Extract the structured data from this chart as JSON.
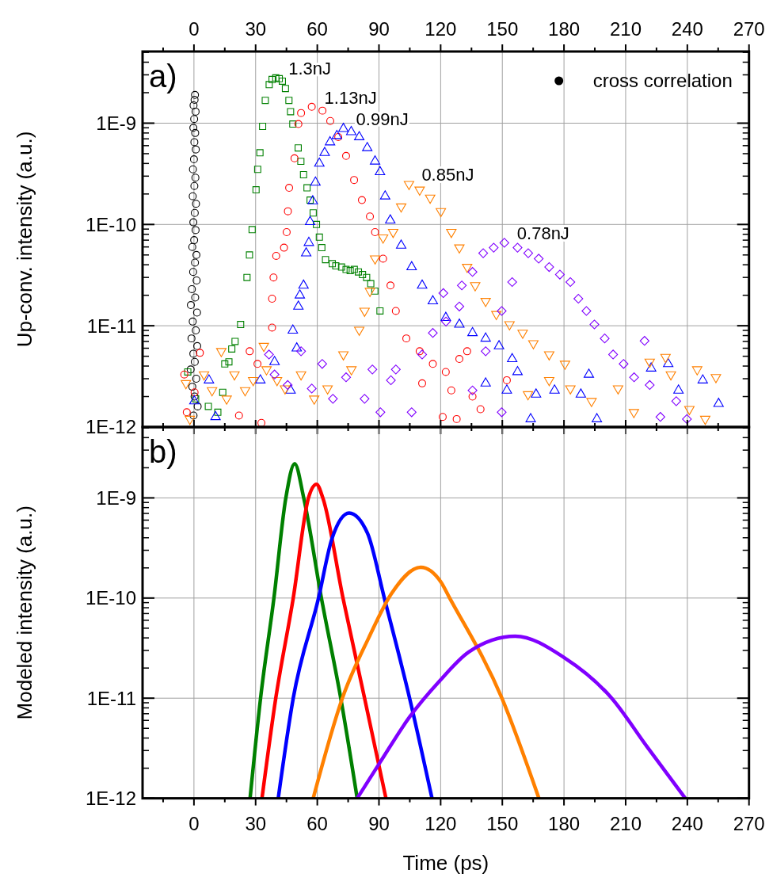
{
  "chart_data": [
    {
      "type": "scatter",
      "ylabel": "Up-conv. intensity (a.u.)",
      "log": "y",
      "grid": true,
      "legend": "top right",
      "xlim": [
        -25,
        270
      ],
      "x2lim": [
        -25,
        270
      ],
      "x2ticks": [
        0,
        30,
        60,
        90,
        120,
        150,
        180,
        210,
        240,
        270
      ],
      "ylim": [
        1e-12,
        5.1e-09
      ],
      "yticks": [
        {
          "value": 1e-12,
          "label": "1E-12"
        },
        {
          "value": 1e-11,
          "label": "1E-11"
        },
        {
          "value": 1e-10,
          "label": "1E-10"
        },
        {
          "value": 1e-09,
          "label": "1E-9"
        }
      ],
      "annotations": [
        "a)"
      ],
      "series": [
        {
          "name": "cross correlation",
          "color": "#000000",
          "marker": "circle",
          "x": [
            0.5,
            0.3,
            -0.2,
            0.8,
            0.1,
            -0.3,
            0.6,
            0.2,
            0.9,
            0.0,
            -0.5,
            0.7,
            0.2,
            -0.6,
            1.0,
            0.4,
            -0.3,
            0.8,
            0.1,
            -0.8,
            1.2,
            0.5,
            -0.4,
            1.3,
            -1.0,
            0.6,
            -1.5,
            1.5,
            -0.6,
            0.9,
            -1.2,
            1.6,
            -0.3,
            0.4,
            -1.6,
            1.1,
            -0.8,
            0.3,
            1.8,
            -0.2
          ],
          "values": [
            1.9e-09,
            1.7e-09,
            1.5e-09,
            1.3e-09,
            1.1e-09,
            9e-10,
            8e-10,
            6.5e-10,
            5.5e-10,
            4.4e-10,
            3.5e-10,
            2.9e-10,
            2.4e-10,
            1.9e-10,
            1.6e-10,
            1.3e-10,
            1.05e-10,
            8.8e-11,
            7e-11,
            6e-11,
            5e-11,
            4.2e-11,
            3.4e-11,
            2.8e-11,
            2.3e-11,
            1.9e-11,
            1.6e-11,
            1.35e-11,
            1.1e-11,
            9e-12,
            7.5e-12,
            6.3e-12,
            5.3e-12,
            4.4e-12,
            3.7e-12,
            3e-12,
            2.5e-12,
            2e-12,
            1.6e-12,
            1.3e-12
          ]
        },
        {
          "name": "1.3nJ",
          "color": "#008000",
          "marker": "square",
          "x": [
            -3,
            0.8,
            7,
            11.6,
            14,
            15,
            17,
            18.4,
            20,
            22.7,
            25.8,
            27,
            28.3,
            30.2,
            31,
            32.1,
            33.4,
            34.7,
            36.6,
            38,
            39.8,
            41.5,
            43,
            44.5,
            46.2,
            47,
            48.1,
            50.7,
            52,
            53.3,
            55,
            56.5,
            58,
            59.6,
            61,
            62.2,
            64,
            67.3,
            69,
            71.8,
            74,
            76,
            78,
            80,
            82,
            84,
            86,
            88,
            90.5
          ],
          "values": [
            3.5e-12,
            1.9e-12,
            1.6e-12,
            1.4e-12,
            2.2e-12,
            4.2e-12,
            4.4e-12,
            5.9e-12,
            7e-12,
            1.03e-11,
            3e-11,
            5e-11,
            8.9e-11,
            2.2e-10,
            3.5e-10,
            5.1e-10,
            9.3e-10,
            1.68e-09,
            2.4e-09,
            2.7e-09,
            2.8e-09,
            2.75e-09,
            2.6e-09,
            2.2e-09,
            1.68e-09,
            1.3e-09,
            9.8e-10,
            5.7e-10,
            4.2e-10,
            3.1e-10,
            2.3e-10,
            1.74e-10,
            1.3e-10,
            1e-10,
            7.5e-11,
            5.9e-11,
            4.5e-11,
            4.1e-11,
            3.9e-11,
            3.8e-11,
            3.6e-11,
            3.5e-11,
            3.6e-11,
            3.4e-11,
            3.2e-11,
            3e-11,
            2.6e-11,
            2.2e-11,
            1.4e-11
          ]
        },
        {
          "name": "1.13nJ",
          "color": "#ff0000",
          "marker": "circle",
          "x": [
            -4.7,
            -3.5,
            0.3,
            2.9,
            21.9,
            27.1,
            30.9,
            32.8,
            38,
            38,
            38.7,
            40,
            43.8,
            45.1,
            45.7,
            46.3,
            48.9,
            50.8,
            52.1,
            57.3,
            62.5,
            66.3,
            70.2,
            74,
            77.9,
            81.7,
            85.6,
            88.1,
            92,
            95.6,
            98.2,
            103.3,
            109.8,
            111,
            116.2,
            121,
            122.5,
            125.2,
            127.8,
            129.1,
            132.9,
            135.5,
            139.4,
            152.2
          ],
          "values": [
            3.3e-12,
            1.4e-12,
            2.2e-12,
            5.4e-12,
            1.3e-12,
            5.6e-12,
            4.2e-12,
            1.1e-12,
            9.6e-12,
            1.85e-11,
            3e-11,
            4.9e-11,
            5.9e-11,
            8.4e-11,
            1.35e-10,
            2.3e-10,
            4.5e-10,
            9.8e-10,
            1.26e-09,
            1.45e-09,
            1.33e-09,
            1.05e-09,
            7.3e-10,
            4.75e-10,
            2.75e-10,
            1.74e-10,
            1.2e-10,
            8.4e-11,
            4.6e-11,
            2.5e-11,
            1.4e-11,
            7.5e-12,
            5.6e-12,
            2.7e-12,
            4.2e-12,
            1.26e-12,
            3.5e-12,
            2.3e-12,
            1.2e-12,
            4.7e-12,
            5.6e-12,
            2e-12,
            1.5e-12,
            2.9e-12
          ]
        },
        {
          "name": "0.99nJ",
          "color": "#0000ff",
          "marker": "triangle",
          "x": [
            0.2,
            7.3,
            10.5,
            32.3,
            39.2,
            47,
            48.1,
            50,
            50.8,
            51.5,
            53.3,
            54.6,
            55.9,
            56.5,
            57.8,
            59.1,
            61,
            63.6,
            66.2,
            69.5,
            72.7,
            76.5,
            80.4,
            84.3,
            88.1,
            90.5,
            93,
            95.5,
            100.8,
            105.9,
            111,
            116.2,
            122.5,
            129.1,
            135.5,
            141.9,
            141.9,
            148.4,
            152.2,
            154.8,
            157.4,
            163.8,
            166.4,
            175.4,
            188.2,
            192.1,
            196,
            222.4,
            230.7,
            235.7,
            247.5,
            255.2
          ],
          "values": [
            1.8e-12,
            2.9e-12,
            1.26e-12,
            2.9e-12,
            4.4e-12,
            2.3e-12,
            9e-12,
            6e-12,
            1.55e-11,
            2e-11,
            2.5e-11,
            5.2e-11,
            6.6e-11,
            1.06e-10,
            1.7e-10,
            2.6e-10,
            4e-10,
            5.1e-10,
            6.5e-10,
            7.5e-10,
            8.8e-10,
            8.2e-10,
            7.3e-10,
            5.7e-10,
            4.2e-10,
            3.3e-10,
            1.9e-10,
            1.1e-10,
            6.2e-11,
            3.8e-11,
            2.5e-11,
            1.75e-11,
            1.2e-11,
            1.03e-11,
            8.5e-12,
            7.5e-12,
            2.7e-12,
            6.3e-12,
            2.3e-12,
            4.7e-12,
            3.5e-12,
            1.2e-12,
            2.1e-12,
            2.3e-12,
            2.1e-12,
            3.3e-12,
            1.2e-12,
            3.8e-12,
            4.2e-12,
            2.3e-12,
            2.9e-12,
            1.7e-12
          ]
        },
        {
          "name": "0.85nJ",
          "color": "#ff8000",
          "marker": "triangle-down",
          "x": [
            -3.9,
            -2,
            4.9,
            8.8,
            13.3,
            15.9,
            19.7,
            24.9,
            28.8,
            34,
            35.3,
            40.4,
            44.3,
            52.1,
            58.5,
            65,
            72.7,
            76.6,
            80.4,
            83,
            85.6,
            88.1,
            92,
            96.9,
            100.8,
            104.6,
            109.8,
            114.9,
            120.1,
            125.2,
            129.1,
            132.9,
            136.8,
            141.9,
            147.1,
            153.5,
            159.9,
            162.5,
            165.1,
            172.8,
            172.8,
            180.5,
            183.1,
            193.4,
            206.3,
            214,
            221.7,
            229.4,
            232,
            241,
            244.8,
            248.7,
            253.9
          ],
          "values": [
            2.7e-12,
            1.2e-12,
            3.3e-12,
            2.3e-12,
            5.6e-12,
            1.9e-12,
            3.3e-12,
            2.3e-12,
            2.9e-12,
            6.3e-12,
            3.7e-12,
            2.9e-12,
            2.4e-12,
            3.3e-12,
            1.9e-12,
            2.4e-12,
            5.2e-12,
            3.7e-12,
            9.1e-12,
            1.4e-11,
            2.2e-11,
            4.6e-11,
            7.4e-11,
            8.4e-11,
            1.5e-10,
            2.5e-10,
            2.2e-10,
            1.83e-10,
            1.35e-10,
            8.4e-11,
            5.9e-11,
            3.8e-11,
            2.5e-11,
            1.75e-11,
            1.3e-11,
            1.03e-11,
            8.5e-12,
            2.1e-12,
            6.7e-12,
            5.2e-12,
            2.9e-12,
            4.2e-12,
            2.4e-12,
            1.8e-12,
            2.4e-12,
            1.4e-12,
            4.4e-12,
            4.9e-12,
            3.3e-12,
            1.5e-12,
            3.7e-12,
            1.2e-12,
            3.1e-12
          ]
        },
        {
          "name": "0.78nJ",
          "color": "#8000ff",
          "marker": "diamond",
          "x": [
            36.5,
            39.2,
            45.6,
            52.1,
            57.3,
            62.4,
            67.6,
            74,
            83,
            86.8,
            90.7,
            95.8,
            98.2,
            105.9,
            111,
            116.2,
            121.3,
            122.6,
            129.1,
            130.3,
            135.5,
            135.5,
            140.7,
            141.9,
            145.8,
            149.7,
            149.7,
            151,
            154.8,
            157.4,
            162.6,
            167.7,
            172.8,
            178,
            183.1,
            187,
            190.9,
            194.8,
            199.8,
            203.9,
            209,
            214.1,
            219.2,
            221.7,
            226.9,
            234.6,
            239.8
          ],
          "values": [
            5.2e-12,
            3.3e-12,
            2.6e-12,
            5.6e-12,
            2.4e-12,
            4.2e-12,
            1.9e-12,
            3.1e-12,
            1.9e-12,
            3.7e-12,
            1.4e-12,
            2.9e-12,
            3.7e-12,
            1.4e-12,
            5.2e-12,
            8.5e-12,
            2.1e-11,
            1.1e-11,
            1.55e-11,
            2.5e-11,
            3.4e-11,
            2.3e-12,
            5.2e-11,
            5.6e-12,
            5.9e-11,
            1.4e-11,
            1.4e-12,
            6.6e-11,
            2.7e-11,
            5.9e-11,
            5.2e-11,
            4.6e-11,
            3.8e-11,
            3.2e-11,
            2.7e-11,
            1.85e-11,
            1.4e-11,
            1.03e-11,
            7.5e-12,
            5.2e-12,
            4.2e-12,
            3.1e-12,
            7.1e-12,
            2.6e-12,
            1.26e-12,
            1.8e-12,
            1.2e-12
          ]
        }
      ]
    },
    {
      "type": "line",
      "xlabel": "Time (ps)",
      "ylabel": "Modeled intensity (a.u.)",
      "log": "y",
      "grid": true,
      "xlim": [
        -25,
        270
      ],
      "xticks": [
        0,
        30,
        60,
        90,
        120,
        150,
        180,
        210,
        240,
        270
      ],
      "ylim": [
        1e-12,
        5.1e-09
      ],
      "yticks": [
        {
          "value": 1e-12,
          "label": "1E-12"
        },
        {
          "value": 1e-11,
          "label": "1E-11"
        },
        {
          "value": 1e-10,
          "label": "1E-10"
        },
        {
          "value": 1e-09,
          "label": "1E-9"
        }
      ],
      "annotations": [
        "b)"
      ],
      "series": [
        {
          "color": "#008000",
          "x": [
            27.3,
            32.4,
            38.9,
            44.7,
            49,
            53.4,
            62,
            71.4,
            79.4
          ],
          "values": [
            1e-12,
            1e-11,
            1e-10,
            1e-09,
            2.2e-09,
            1e-09,
            1e-10,
            1e-11,
            1e-12
          ]
        },
        {
          "color": "#ff0000",
          "x": [
            33.1,
            39.8,
            48.3,
            55.7,
            59.6,
            62.7,
            72.5,
            83,
            93.4
          ],
          "values": [
            1e-12,
            1e-11,
            1e-10,
            1e-09,
            1.37e-09,
            1e-09,
            1e-10,
            1e-11,
            1e-12
          ]
        },
        {
          "color": "#0000ff",
          "x": [
            41,
            48.3,
            60.6,
            67.1,
            75.5,
            84.4,
            92.6,
            104.9,
            115.8
          ],
          "values": [
            1e-12,
            1e-11,
            1e-10,
            3.9e-10,
            7.06e-10,
            4.45e-10,
            1e-10,
            1e-11,
            1e-12
          ]
        },
        {
          "color": "#ff8000",
          "x": [
            58,
            72.2,
            85,
            96,
            110.3,
            120.1,
            124.4,
            149.8,
            167.8
          ],
          "values": [
            1e-12,
            1e-11,
            4e-11,
            1.1e-10,
            2.03e-10,
            1.45e-10,
            1e-10,
            1e-11,
            1e-12
          ]
        },
        {
          "color": "#8000ff",
          "x": [
            79.4,
            90.6,
            104.9,
            119.4,
            133.7,
            156.3,
            180,
            203.2,
            220.3,
            239
          ],
          "values": [
            1e-12,
            2.3e-12,
            6.5e-12,
            1.48e-11,
            2.9e-11,
            4.16e-11,
            2.55e-11,
            1e-11,
            3.3e-12,
            1e-12
          ]
        }
      ]
    }
  ]
}
